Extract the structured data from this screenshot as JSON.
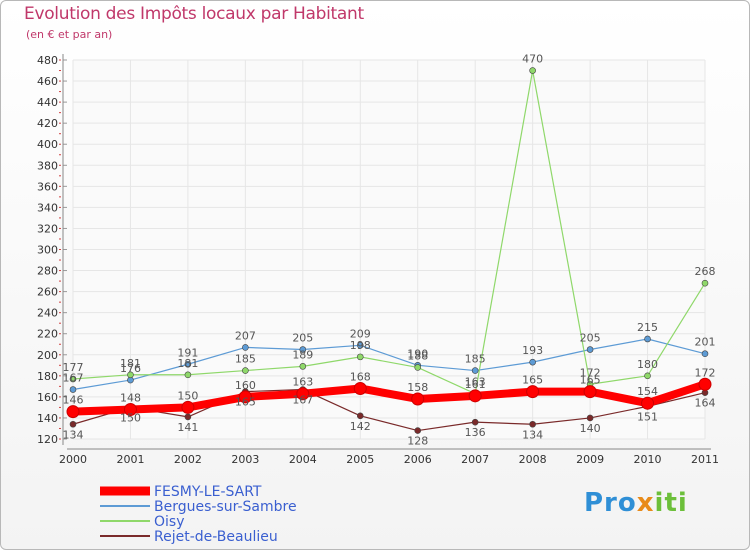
{
  "chart_data": {
    "type": "line",
    "title": "Evolution des Impôts locaux par Habitant",
    "subtitle": "(en € et par an)",
    "xlabel": "",
    "ylabel": "",
    "x": [
      "2000",
      "2001",
      "2002",
      "2003",
      "2004",
      "2005",
      "2006",
      "2007",
      "2008",
      "2009",
      "2010",
      "2011"
    ],
    "ylim": [
      120,
      480
    ],
    "yticks": [
      120,
      140,
      160,
      180,
      200,
      220,
      240,
      260,
      280,
      300,
      320,
      340,
      360,
      380,
      400,
      420,
      440,
      460,
      480
    ],
    "series": [
      {
        "name": "FESMY-LE-SART",
        "color": "#ff0000",
        "width": 8,
        "values": [
          146,
          148,
          150,
          160,
          163,
          168,
          158,
          161,
          165,
          165,
          154,
          172
        ]
      },
      {
        "name": "Bergues-sur-Sambre",
        "color": "#5d9bd5",
        "width": 1.2,
        "values": [
          167,
          176,
          191,
          207,
          205,
          209,
          190,
          185,
          193,
          205,
          215,
          201
        ]
      },
      {
        "name": "Oisy",
        "color": "#8fd86a",
        "width": 1.2,
        "values": [
          177,
          181,
          181,
          185,
          189,
          198,
          188,
          163,
          470,
          172,
          180,
          268
        ]
      },
      {
        "name": "Rejet-de-Beaulieu",
        "color": "#7a2a2a",
        "width": 1.2,
        "values": [
          134,
          150,
          141,
          165,
          167,
          142,
          128,
          136,
          134,
          140,
          151,
          164
        ]
      }
    ]
  },
  "logo": {
    "text_a": "Pro",
    "text_b": "x",
    "text_c": "iti"
  }
}
